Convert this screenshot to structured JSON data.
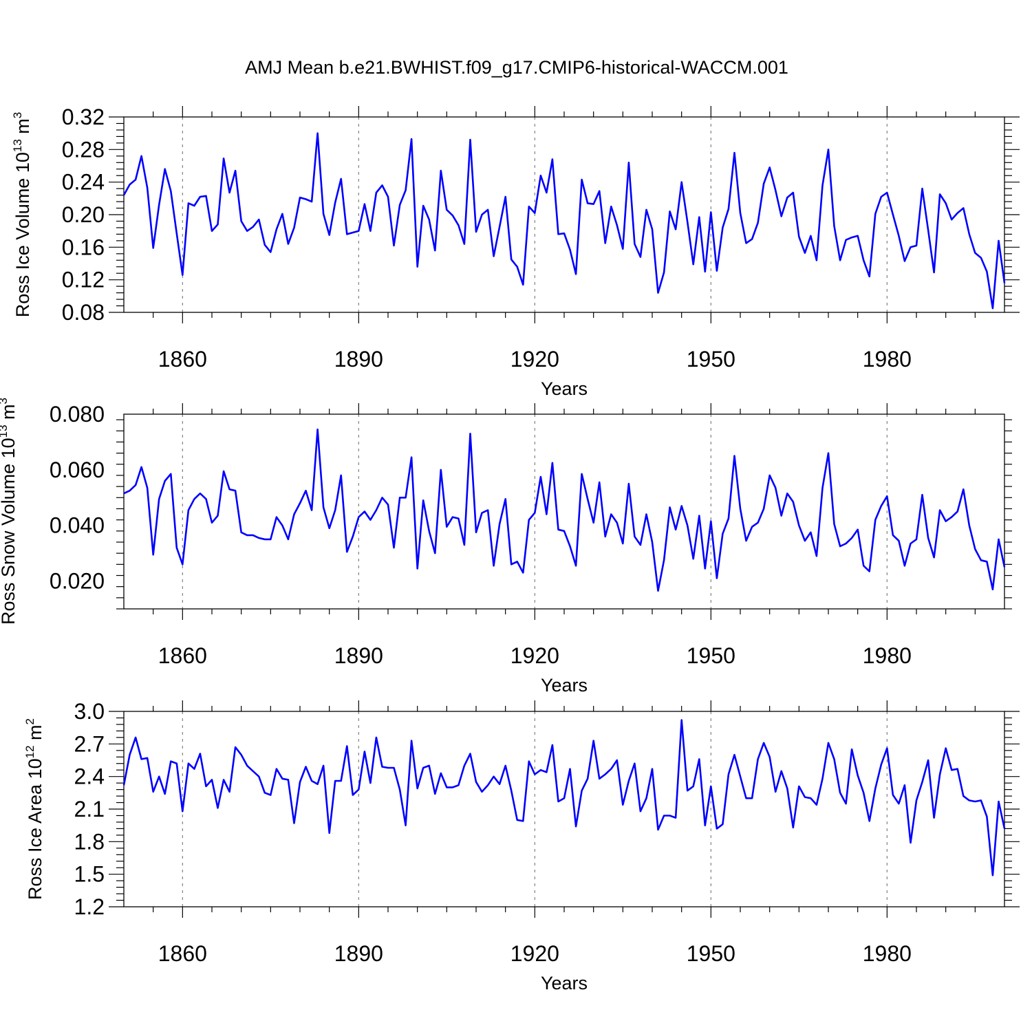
{
  "figure_title": "AMJ Mean b.e21.BWHIST.f09_g17.CMIP6-historical-WACCM.001",
  "line_color": "#0000ff",
  "grid_color": "#808080",
  "chart_data": [
    {
      "type": "line",
      "title": "",
      "xlabel": "Years",
      "ylabel": {
        "text": "Ross Ice Volume 10",
        "exponent": "13",
        "unit": " m",
        "unit_exponent": "3"
      },
      "xlim": [
        1850,
        2000
      ],
      "ylim": [
        0.08,
        0.32
      ],
      "yticks": [
        0.08,
        0.12,
        0.16,
        0.2,
        0.24,
        0.28,
        0.32
      ],
      "ytick_labels": [
        "0.08",
        "0.12",
        "0.16",
        "0.20",
        "0.24",
        "0.28",
        "0.32"
      ],
      "xticks": [
        1860,
        1890,
        1920,
        1950,
        1980
      ],
      "xtick_labels": [
        "1860",
        "1890",
        "1920",
        "1950",
        "1980"
      ],
      "x_start": 1850,
      "series": [
        {
          "name": "Ross Ice Volume",
          "values": [
            0.224,
            0.237,
            0.243,
            0.272,
            0.233,
            0.159,
            0.212,
            0.256,
            0.229,
            0.177,
            0.126,
            0.214,
            0.211,
            0.222,
            0.223,
            0.18,
            0.188,
            0.269,
            0.227,
            0.254,
            0.192,
            0.18,
            0.185,
            0.194,
            0.163,
            0.154,
            0.182,
            0.201,
            0.164,
            0.184,
            0.221,
            0.219,
            0.216,
            0.3,
            0.201,
            0.175,
            0.215,
            0.244,
            0.176,
            0.178,
            0.18,
            0.213,
            0.18,
            0.227,
            0.236,
            0.222,
            0.162,
            0.212,
            0.23,
            0.293,
            0.136,
            0.211,
            0.194,
            0.156,
            0.254,
            0.206,
            0.199,
            0.187,
            0.164,
            0.292,
            0.179,
            0.2,
            0.206,
            0.149,
            0.185,
            0.222,
            0.145,
            0.136,
            0.114,
            0.21,
            0.202,
            0.248,
            0.227,
            0.268,
            0.176,
            0.177,
            0.157,
            0.127,
            0.243,
            0.214,
            0.213,
            0.229,
            0.165,
            0.21,
            0.187,
            0.158,
            0.264,
            0.164,
            0.148,
            0.206,
            0.182,
            0.104,
            0.129,
            0.204,
            0.182,
            0.24,
            0.191,
            0.139,
            0.197,
            0.13,
            0.203,
            0.131,
            0.184,
            0.207,
            0.276,
            0.202,
            0.165,
            0.17,
            0.19,
            0.238,
            0.258,
            0.23,
            0.198,
            0.221,
            0.227,
            0.173,
            0.153,
            0.174,
            0.144,
            0.236,
            0.28,
            0.186,
            0.144,
            0.169,
            0.172,
            0.174,
            0.144,
            0.124,
            0.201,
            0.222,
            0.227,
            0.2,
            0.174,
            0.143,
            0.16,
            0.162,
            0.232,
            0.181,
            0.129,
            0.225,
            0.214,
            0.194,
            0.202,
            0.208,
            0.176,
            0.153,
            0.147,
            0.13,
            0.085,
            0.168,
            0.116
          ]
        }
      ]
    },
    {
      "type": "line",
      "title": "",
      "xlabel": "Years",
      "ylabel": {
        "text": "Ross Snow Volume 10",
        "exponent": "13",
        "unit": " m",
        "unit_exponent": "3"
      },
      "xlim": [
        1850,
        2000
      ],
      "ylim": [
        0.01,
        0.08
      ],
      "yticks": [
        0.02,
        0.04,
        0.06,
        0.08
      ],
      "ytick_labels": [
        "0.020",
        "0.040",
        "0.060",
        "0.080"
      ],
      "xticks": [
        1860,
        1890,
        1920,
        1950,
        1980
      ],
      "xtick_labels": [
        "1860",
        "1890",
        "1920",
        "1950",
        "1980"
      ],
      "x_start": 1850,
      "series": [
        {
          "name": "Ross Snow Volume",
          "values": [
            0.0515,
            0.0525,
            0.0545,
            0.061,
            0.0535,
            0.0295,
            0.0495,
            0.056,
            0.0585,
            0.032,
            0.026,
            0.0455,
            0.0495,
            0.0515,
            0.0495,
            0.041,
            0.0435,
            0.0595,
            0.053,
            0.0525,
            0.0375,
            0.0365,
            0.0365,
            0.0355,
            0.035,
            0.035,
            0.043,
            0.04,
            0.035,
            0.044,
            0.048,
            0.0525,
            0.0455,
            0.0745,
            0.0465,
            0.039,
            0.0455,
            0.058,
            0.0305,
            0.036,
            0.043,
            0.045,
            0.042,
            0.0455,
            0.05,
            0.0475,
            0.032,
            0.05,
            0.05,
            0.0645,
            0.0245,
            0.049,
            0.038,
            0.03,
            0.06,
            0.0395,
            0.043,
            0.0425,
            0.033,
            0.073,
            0.0375,
            0.0445,
            0.0455,
            0.0255,
            0.0405,
            0.0495,
            0.026,
            0.027,
            0.023,
            0.042,
            0.0445,
            0.0575,
            0.044,
            0.0625,
            0.0385,
            0.038,
            0.0325,
            0.0255,
            0.0585,
            0.0495,
            0.041,
            0.0555,
            0.036,
            0.044,
            0.041,
            0.0335,
            0.055,
            0.036,
            0.033,
            0.044,
            0.034,
            0.0165,
            0.0275,
            0.0465,
            0.0385,
            0.047,
            0.04,
            0.028,
            0.0435,
            0.0245,
            0.0415,
            0.021,
            0.037,
            0.0425,
            0.065,
            0.046,
            0.0345,
            0.0395,
            0.041,
            0.046,
            0.058,
            0.0535,
            0.0435,
            0.0515,
            0.0485,
            0.04,
            0.0345,
            0.0375,
            0.029,
            0.0535,
            0.066,
            0.0405,
            0.0325,
            0.0335,
            0.0355,
            0.0385,
            0.0255,
            0.0235,
            0.042,
            0.047,
            0.0505,
            0.0365,
            0.0345,
            0.0255,
            0.0335,
            0.035,
            0.051,
            0.0355,
            0.0285,
            0.0455,
            0.0415,
            0.043,
            0.045,
            0.053,
            0.04,
            0.0315,
            0.0275,
            0.027,
            0.017,
            0.035,
            0.025
          ]
        }
      ]
    },
    {
      "type": "line",
      "title": "",
      "xlabel": "Years",
      "ylabel": {
        "text": "Ross Ice Area 10",
        "exponent": "12",
        "unit": " m",
        "unit_exponent": "2"
      },
      "xlim": [
        1850,
        2000
      ],
      "ylim": [
        1.2,
        3.0
      ],
      "yticks": [
        1.2,
        1.5,
        1.8,
        2.1,
        2.4,
        2.7,
        3.0
      ],
      "ytick_labels": [
        "1.2",
        "1.5",
        "1.8",
        "2.1",
        "2.4",
        "2.7",
        "3.0"
      ],
      "xticks": [
        1860,
        1890,
        1920,
        1950,
        1980
      ],
      "xtick_labels": [
        "1860",
        "1890",
        "1920",
        "1950",
        "1980"
      ],
      "x_start": 1850,
      "series": [
        {
          "name": "Ross Ice Area",
          "values": [
            2.32,
            2.6,
            2.76,
            2.56,
            2.57,
            2.26,
            2.4,
            2.24,
            2.54,
            2.52,
            2.08,
            2.52,
            2.47,
            2.61,
            2.31,
            2.37,
            2.11,
            2.37,
            2.26,
            2.67,
            2.6,
            2.5,
            2.45,
            2.4,
            2.25,
            2.23,
            2.47,
            2.38,
            2.37,
            1.97,
            2.35,
            2.49,
            2.36,
            2.33,
            2.5,
            1.88,
            2.36,
            2.36,
            2.68,
            2.23,
            2.28,
            2.63,
            2.34,
            2.76,
            2.49,
            2.48,
            2.48,
            2.28,
            1.95,
            2.73,
            2.29,
            2.48,
            2.5,
            2.24,
            2.43,
            2.3,
            2.3,
            2.32,
            2.5,
            2.61,
            2.35,
            2.26,
            2.32,
            2.4,
            2.33,
            2.5,
            2.27,
            2.0,
            1.99,
            2.54,
            2.42,
            2.46,
            2.44,
            2.69,
            2.17,
            2.2,
            2.47,
            1.94,
            2.27,
            2.38,
            2.73,
            2.38,
            2.42,
            2.47,
            2.55,
            2.14,
            2.36,
            2.52,
            2.08,
            2.2,
            2.47,
            1.91,
            2.04,
            2.04,
            2.02,
            2.92,
            2.27,
            2.31,
            2.56,
            1.95,
            2.31,
            1.92,
            1.96,
            2.42,
            2.6,
            2.4,
            2.2,
            2.2,
            2.56,
            2.71,
            2.58,
            2.26,
            2.45,
            2.29,
            1.93,
            2.31,
            2.21,
            2.2,
            2.14,
            2.38,
            2.71,
            2.56,
            2.25,
            2.15,
            2.65,
            2.41,
            2.25,
            1.99,
            2.29,
            2.51,
            2.66,
            2.23,
            2.15,
            2.32,
            1.79,
            2.18,
            2.35,
            2.55,
            2.02,
            2.42,
            2.66,
            2.46,
            2.47,
            2.22,
            2.18,
            2.17,
            2.18,
            2.03,
            1.49,
            2.17,
            1.92
          ]
        }
      ]
    }
  ]
}
